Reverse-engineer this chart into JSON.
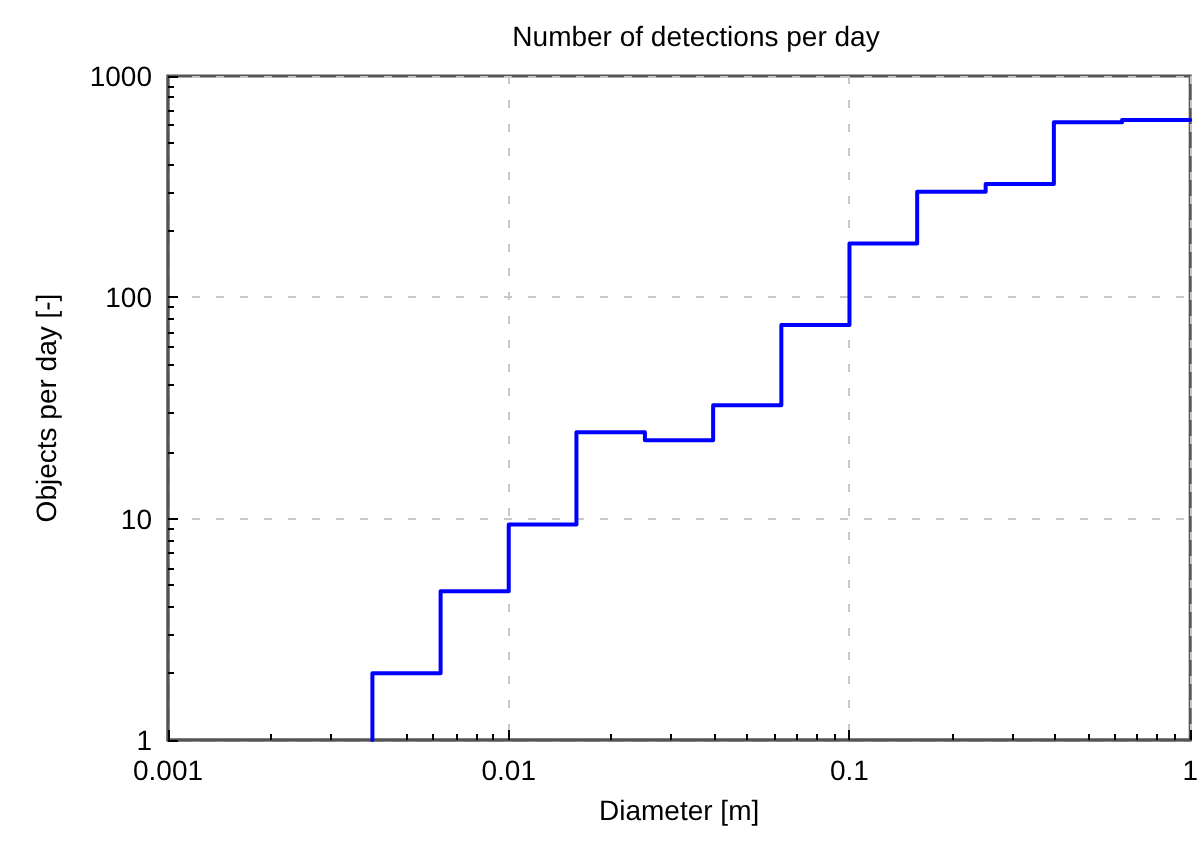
{
  "chart_data": {
    "type": "histogram",
    "title": "Number of detections per day",
    "xlabel": "Diameter [m]",
    "ylabel": "Objects per day [-]",
    "bins": [
      0.00398,
      0.00631,
      0.01,
      0.0158,
      0.0251,
      0.0398,
      0.0631,
      0.1,
      0.158,
      0.251,
      0.398,
      0.631,
      1
    ],
    "values": [
      2,
      4.7,
      9.4,
      24.6,
      22.6,
      32.5,
      75,
      175,
      300,
      325,
      618,
      632
    ],
    "color": "#0000ff",
    "xlim": [
      0.001,
      1
    ],
    "ylim": [
      1,
      1000
    ],
    "xticks": [
      0.001,
      0.01,
      0.1,
      1
    ],
    "yticks": [
      1,
      10,
      100,
      1000
    ],
    "log": "xy",
    "grid": true
  }
}
